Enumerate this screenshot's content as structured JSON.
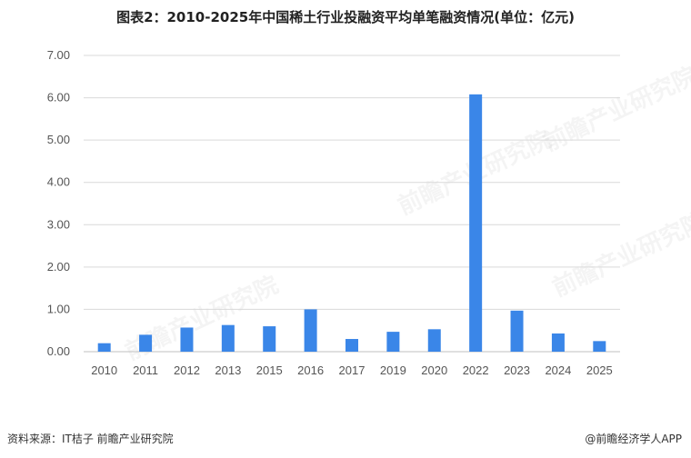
{
  "chart_data": {
    "type": "bar",
    "title": "图表2：2010-2025年中国稀土行业投融资平均单笔融资情况(单位：亿元)",
    "categories": [
      "2010",
      "2011",
      "2012",
      "2013",
      "2015",
      "2016",
      "2017",
      "2019",
      "2020",
      "2022",
      "2023",
      "2024",
      "2025"
    ],
    "values": [
      0.2,
      0.4,
      0.57,
      0.63,
      0.6,
      1.0,
      0.3,
      0.47,
      0.53,
      6.08,
      0.97,
      0.43,
      0.25
    ],
    "ylim": [
      0,
      7
    ],
    "yticks": [
      "0.00",
      "1.00",
      "2.00",
      "3.00",
      "4.00",
      "5.00",
      "6.00",
      "7.00"
    ],
    "xlabel": "",
    "ylabel": "",
    "grid": true,
    "bar_color": "#3a86e8"
  },
  "footer": {
    "source": "资料来源：IT桔子 前瞻产业研究院",
    "brand": "@前瞻经济学人APP"
  },
  "watermark": "前瞻产业研究院"
}
